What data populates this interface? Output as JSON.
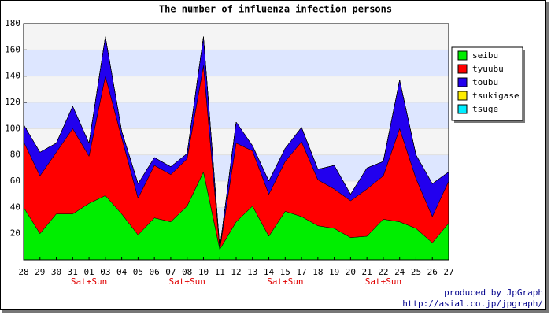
{
  "chart_data": {
    "type": "stacked_area",
    "title": "The number of influenza infection persons",
    "categories": [
      "28",
      "29",
      "30",
      "31",
      "01",
      "03",
      "04",
      "05",
      "06",
      "07",
      "08",
      "10",
      "11",
      "12",
      "13",
      "14",
      "15",
      "17",
      "18",
      "19",
      "20",
      "21",
      "22",
      "24",
      "25",
      "26",
      "27"
    ],
    "series": [
      {
        "name": "seibu",
        "color": "#00ee00",
        "values": [
          40,
          20,
          35,
          35,
          43,
          49,
          35,
          19,
          32,
          29,
          41,
          67,
          8,
          29,
          41,
          18,
          37,
          33,
          26,
          24,
          17,
          18,
          31,
          29,
          24,
          13,
          28
        ]
      },
      {
        "name": "tyuubu",
        "color": "#ff0000",
        "values": [
          50,
          44,
          47,
          65,
          36,
          91,
          58,
          28,
          40,
          36,
          36,
          81,
          0,
          60,
          42,
          32,
          38,
          57,
          35,
          30,
          28,
          36,
          33,
          71,
          38,
          20,
          32
        ]
      },
      {
        "name": "toubu",
        "color": "#2200ee",
        "values": [
          13,
          18,
          7,
          17,
          10,
          30,
          5,
          11,
          6,
          6,
          4,
          22,
          1,
          16,
          4,
          10,
          10,
          11,
          8,
          18,
          5,
          16,
          11,
          37,
          18,
          25,
          7
        ]
      },
      {
        "name": "tsukigase",
        "color": "#ffee00",
        "values": [
          0,
          0,
          0,
          0,
          0,
          0,
          0,
          0,
          0,
          0,
          0,
          0,
          0,
          0,
          0,
          0,
          0,
          0,
          0,
          0,
          0,
          0,
          0,
          0,
          0,
          0,
          0
        ]
      },
      {
        "name": "tsuge",
        "color": "#00eeff",
        "values": [
          0,
          0,
          0,
          0,
          0,
          0,
          0,
          0,
          0,
          0,
          0,
          0,
          0,
          0,
          0,
          0,
          0,
          0,
          0,
          0,
          0,
          0,
          0,
          0,
          0,
          0,
          0
        ]
      }
    ],
    "ylim": [
      0,
      180
    ],
    "yticks": [
      20,
      40,
      60,
      80,
      100,
      120,
      140,
      160,
      180
    ],
    "annotations": [
      "Sat+Sun",
      "Sat+Sun",
      "Sat+Sun",
      "Sat+Sun"
    ],
    "credits": [
      "produced by JpGraph",
      "http://asial.co.jp/jpgraph/"
    ],
    "legend": "right"
  }
}
